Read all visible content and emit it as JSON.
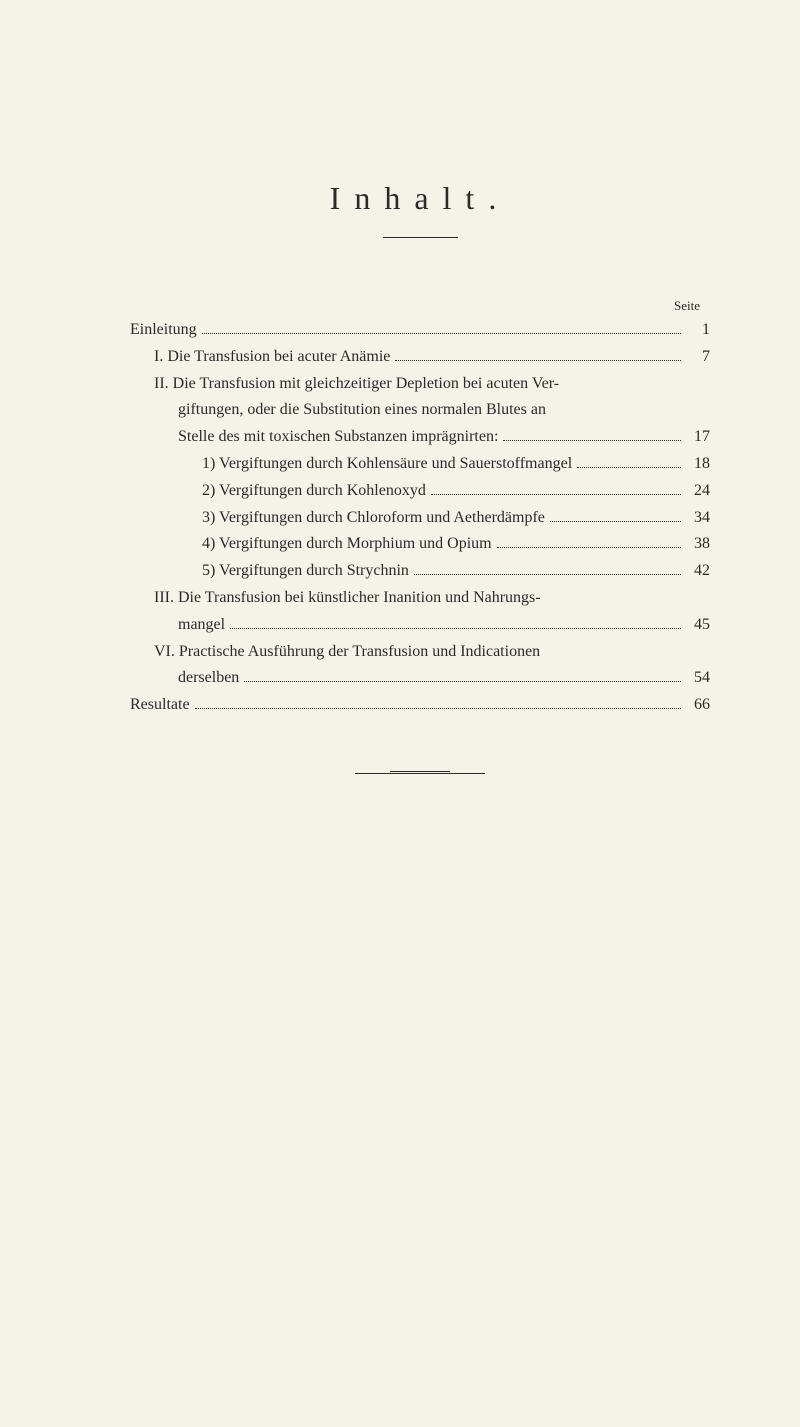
{
  "title": "Inhalt.",
  "page_label": "Seite",
  "background_color": "#f5f2e8",
  "text_color": "#2a2a2a",
  "font_family": "Georgia, 'Times New Roman', serif",
  "entries": [
    {
      "text": "Einleitung",
      "page": "1",
      "indent": 0
    },
    {
      "text": "I. Die Transfusion bei acuter Anämie",
      "page": "7",
      "indent": 1,
      "roman": true
    },
    {
      "text": "II. Die Transfusion mit gleichzeitiger Depletion bei acuten Ver-",
      "page": "",
      "indent": 1,
      "roman": true,
      "no_page": true
    },
    {
      "text": "giftungen, oder die Substitution eines normalen Blutes an",
      "page": "",
      "indent": 2,
      "no_page": true,
      "continuation": true
    },
    {
      "text": "Stelle des mit toxischen Substanzen imprägnirten:",
      "page": "17",
      "indent": 2,
      "continuation": true
    },
    {
      "text": "1) Vergiftungen durch Kohlensäure und Sauerstoffmangel",
      "page": "18",
      "indent": 3
    },
    {
      "text": "2) Vergiftungen durch Kohlenoxyd",
      "page": "24",
      "indent": 3
    },
    {
      "text": "3) Vergiftungen durch Chloroform und Aetherdämpfe",
      "page": "34",
      "indent": 3
    },
    {
      "text": "4) Vergiftungen durch Morphium und Opium",
      "page": "38",
      "indent": 3
    },
    {
      "text": "5) Vergiftungen durch Strychnin",
      "page": "42",
      "indent": 3
    },
    {
      "text": "III. Die Transfusion bei künstlicher Inanition und Nahrungs-",
      "page": "",
      "indent": 1,
      "roman": true,
      "no_page": true
    },
    {
      "text": "mangel",
      "page": "45",
      "indent": 2,
      "continuation": true
    },
    {
      "text": "VI. Practische Ausführung der Transfusion und Indicationen",
      "page": "",
      "indent": 1,
      "roman": true,
      "no_page": true
    },
    {
      "text": "derselben",
      "page": "54",
      "indent": 2,
      "continuation": true
    },
    {
      "text": "Resultate",
      "page": "66",
      "indent": 0
    }
  ]
}
